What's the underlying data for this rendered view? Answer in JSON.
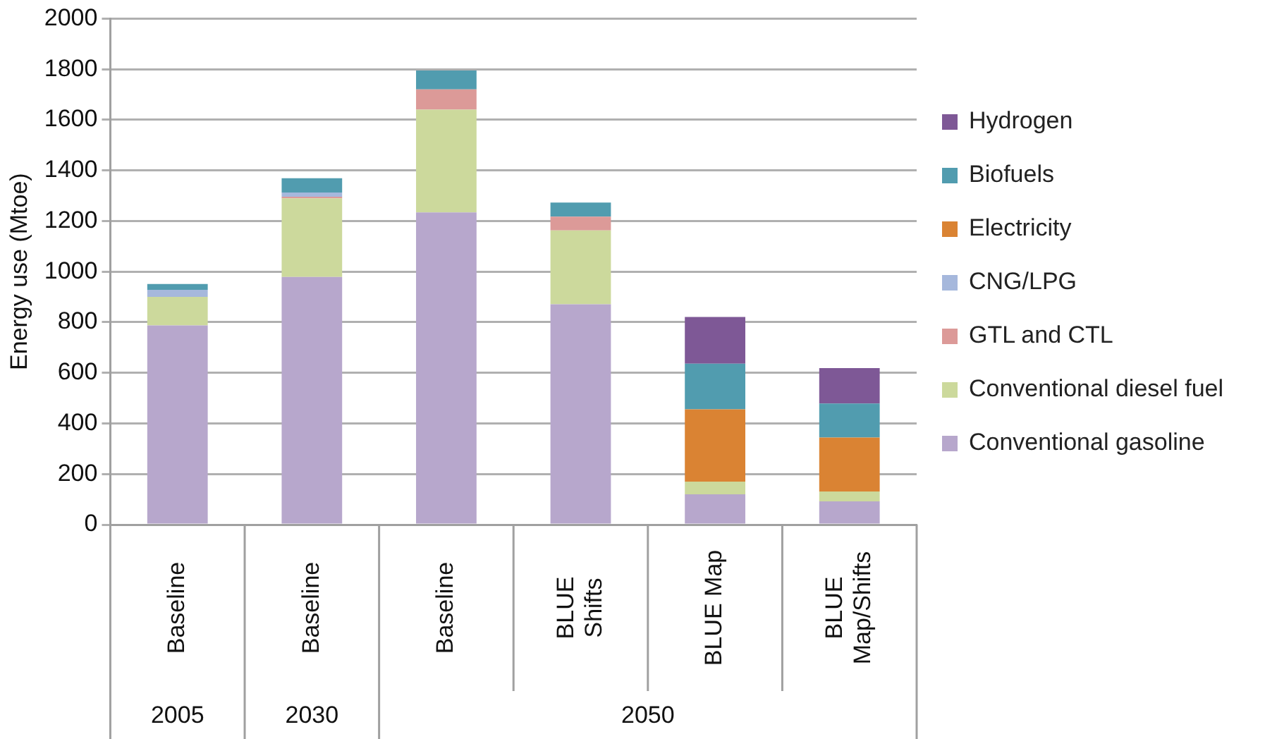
{
  "chart_data": {
    "type": "bar",
    "stacked": true,
    "ylabel": "Energy use (Mtoe)",
    "categories": [
      "Baseline",
      "Baseline",
      "Baseline",
      "BLUE Shifts",
      "BLUE Map",
      "BLUE Map/Shifts"
    ],
    "annotations": [
      "2005",
      "2030",
      "2050"
    ],
    "ylim": [
      0,
      2000
    ],
    "yticks": [
      0,
      200,
      400,
      600,
      800,
      1000,
      1200,
      1400,
      1600,
      1800,
      2000
    ],
    "grid": "y",
    "legend": "right",
    "series": [
      {
        "name": "Conventional gasoline",
        "color": "#b7a7cc",
        "values": [
          787,
          979,
          1234,
          871,
          120,
          92
        ]
      },
      {
        "name": "Conventional diesel fuel",
        "color": "#ccd99c",
        "values": [
          113,
          311,
          406,
          292,
          50,
          39
        ]
      },
      {
        "name": "GTL and CTL",
        "color": "#dc9a98",
        "values": [
          0,
          6,
          80,
          54,
          0,
          0
        ]
      },
      {
        "name": "CNG/LPG",
        "color": "#a6b8dc",
        "values": [
          28,
          17,
          null,
          null,
          0,
          0
        ]
      },
      {
        "name": "Electricity",
        "color": "#da8333",
        "values": [
          0,
          0,
          0,
          0,
          286,
          213
        ]
      },
      {
        "name": "Biofuels",
        "color": "#519caf",
        "values": [
          23,
          56,
          75,
          56,
          180,
          135
        ]
      },
      {
        "name": "Hydrogen",
        "color": "#7e5896",
        "values": [
          0,
          0,
          0,
          0,
          185,
          140
        ]
      }
    ]
  }
}
